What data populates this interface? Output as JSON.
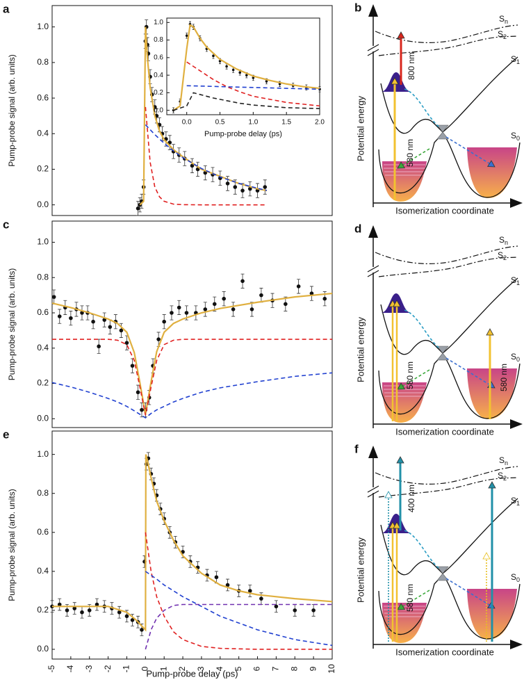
{
  "chart_data": [
    {
      "type": "scatter",
      "panel": "a",
      "ylabel": "Pump-probe signal (arb. units)",
      "xlim": [
        -5,
        10
      ],
      "ylim": [
        -0.06,
        1.12
      ],
      "yticks": [
        {
          "value": 0,
          "label": "0.0"
        },
        0.2,
        0.4,
        0.6,
        0.8,
        {
          "value": 1,
          "label": "1.0"
        }
      ],
      "points": {
        "x": [
          -0.4,
          -0.3,
          -0.2,
          -0.1,
          0,
          0.05,
          0.1,
          0.15,
          0.25,
          0.35,
          0.5,
          0.6,
          0.75,
          0.9,
          1.1,
          1.3,
          1.5,
          1.8,
          2.1,
          2.5,
          2.8,
          3.2,
          3.6,
          4.0,
          4.4,
          4.8,
          5.2,
          5.6,
          6.0,
          6.4
        ],
        "y": [
          -0.02,
          0,
          0.02,
          0.1,
          0.92,
          1.0,
          0.9,
          0.85,
          0.72,
          0.62,
          0.55,
          0.5,
          0.45,
          0.4,
          0.37,
          0.35,
          0.3,
          0.28,
          0.26,
          0.22,
          0.2,
          0.18,
          0.17,
          0.15,
          0.12,
          0.1,
          0.08,
          0.09,
          0.08,
          0.1
        ],
        "err": 0.04
      },
      "curves": [
        {
          "color": "#e0b040",
          "dash": false,
          "x": [
            -0.3,
            -0.1,
            0,
            0.1,
            0.25,
            0.5,
            0.75,
            1,
            1.5,
            2,
            3,
            4,
            5,
            6,
            6.5
          ],
          "values": [
            0,
            0.02,
            1.0,
            0.83,
            0.66,
            0.5,
            0.415,
            0.366,
            0.31,
            0.27,
            0.2,
            0.16,
            0.12,
            0.09,
            0.08
          ]
        },
        {
          "color": "#e02020",
          "dash": true,
          "x": [
            0,
            0.25,
            0.5,
            0.75,
            1,
            1.5,
            2,
            3,
            4,
            5,
            6,
            6.5
          ],
          "values": [
            0.55,
            0.24,
            0.1,
            0.045,
            0.02,
            0.004,
            0.001,
            0,
            0,
            0,
            0,
            0
          ]
        },
        {
          "color": "#2040d0",
          "dash": true,
          "x": [
            0,
            0.5,
            1,
            1.5,
            2,
            3,
            4,
            5,
            6,
            6.5
          ],
          "values": [
            0.45,
            0.395,
            0.346,
            0.304,
            0.266,
            0.204,
            0.157,
            0.121,
            0.093,
            0.081
          ]
        }
      ]
    },
    {
      "type": "scatter",
      "xlabel": "Pump-probe delay (ps)",
      "xlim": [
        -0.3,
        2.0
      ],
      "ylim": [
        -0.05,
        1.05
      ],
      "xticks": [
        {
          "value": 0,
          "label": "0.0"
        },
        0.5,
        {
          "value": 1,
          "label": "1.0"
        },
        1.5,
        {
          "value": 2,
          "label": "2.0"
        }
      ],
      "yticks": [
        {
          "value": 0,
          "label": "0.0"
        },
        0.2,
        0.4,
        0.6,
        0.8,
        {
          "value": 1,
          "label": "1.0"
        }
      ],
      "points": {
        "x": [
          -0.2,
          -0.1,
          0,
          0.05,
          0.1,
          0.2,
          0.3,
          0.4,
          0.5,
          0.6,
          0.7,
          0.8,
          0.9,
          1.0,
          1.2,
          1.4,
          1.6,
          1.8,
          2.0
        ],
        "y": [
          0.0,
          0.1,
          0.85,
          0.98,
          0.95,
          0.82,
          0.7,
          0.62,
          0.56,
          0.5,
          0.46,
          0.43,
          0.4,
          0.37,
          0.33,
          0.3,
          0.28,
          0.26,
          0.24
        ],
        "err": 0.03
      },
      "curves": [
        {
          "color": "#e0b040",
          "dash": false,
          "x": [
            -0.2,
            -0.1,
            0,
            0.05,
            0.1,
            0.2,
            0.3,
            0.5,
            0.75,
            1,
            1.25,
            1.5,
            1.75,
            2
          ],
          "values": [
            0,
            0.05,
            0.7,
            0.97,
            0.95,
            0.82,
            0.72,
            0.58,
            0.47,
            0.39,
            0.34,
            0.3,
            0.27,
            0.25
          ]
        },
        {
          "color": "#e02020",
          "dash": true,
          "x": [
            0,
            0.1,
            0.2,
            0.4,
            0.6,
            0.8,
            1,
            1.5,
            2
          ],
          "values": [
            0.55,
            0.5,
            0.45,
            0.35,
            0.27,
            0.21,
            0.16,
            0.09,
            0.05
          ]
        },
        {
          "color": "#2040d0",
          "dash": true,
          "x": [
            0,
            0.5,
            1,
            1.5,
            2
          ],
          "values": [
            0.28,
            0.27,
            0.26,
            0.25,
            0.24
          ]
        },
        {
          "color": "#222222",
          "dash": true,
          "x": [
            -0.2,
            0,
            0.1,
            0.2,
            0.4,
            0.6,
            0.8,
            1,
            1.5,
            2
          ],
          "values": [
            0,
            0.05,
            0.2,
            0.18,
            0.14,
            0.11,
            0.08,
            0.06,
            0.03,
            0.02
          ]
        }
      ]
    },
    {
      "type": "scatter",
      "panel": "c",
      "ylabel": "Pump-probe signal (arb. units)",
      "xlim": [
        -5,
        10
      ],
      "ylim": [
        -0.05,
        1.12
      ],
      "yticks": [
        {
          "value": 0,
          "label": "0.0"
        },
        0.2,
        0.4,
        0.6,
        0.8,
        {
          "value": 1,
          "label": "1.0"
        }
      ],
      "points": {
        "x": [
          -4.9,
          -4.6,
          -4.3,
          -4.0,
          -3.7,
          -3.4,
          -3.1,
          -2.8,
          -2.5,
          -2.2,
          -1.9,
          -1.6,
          -1.3,
          -1.0,
          -0.7,
          -0.4,
          -0.2,
          0,
          0.2,
          0.4,
          0.7,
          1.0,
          1.4,
          1.8,
          2.2,
          2.7,
          3.2,
          3.7,
          4.2,
          4.7,
          5.2,
          5.7,
          6.2,
          6.8,
          7.5,
          8.2,
          8.9,
          9.6
        ],
        "y": [
          0.69,
          0.58,
          0.63,
          0.57,
          0.62,
          0.6,
          0.6,
          0.55,
          0.41,
          0.56,
          0.52,
          0.55,
          0.5,
          0.43,
          0.3,
          0.15,
          0.05,
          0.05,
          0.12,
          0.3,
          0.45,
          0.55,
          0.6,
          0.63,
          0.6,
          0.6,
          0.62,
          0.65,
          0.68,
          0.62,
          0.78,
          0.62,
          0.7,
          0.67,
          0.65,
          0.75,
          0.71,
          0.68
        ],
        "err": 0.04
      },
      "curves": [
        {
          "color": "#e0b040",
          "dash": false,
          "x": [
            -5,
            -4,
            -3,
            -2,
            -1.5,
            -1,
            -0.6,
            -0.3,
            0,
            0.3,
            0.6,
            1,
            1.5,
            2,
            3,
            4,
            6,
            8,
            10
          ],
          "values": [
            0.655,
            0.63,
            0.6,
            0.565,
            0.54,
            0.49,
            0.375,
            0.205,
            0.025,
            0.21,
            0.38,
            0.49,
            0.54,
            0.565,
            0.6,
            0.625,
            0.66,
            0.69,
            0.71
          ]
        },
        {
          "color": "#e02020",
          "dash": true,
          "x": [
            -5,
            -4,
            -3,
            -2,
            -1.5,
            -1,
            -0.6,
            -0.3,
            0,
            0.3,
            0.6,
            1,
            1.5,
            2,
            3,
            4,
            6,
            8,
            10
          ],
          "values": [
            0.45,
            0.45,
            0.45,
            0.45,
            0.445,
            0.42,
            0.33,
            0.18,
            0.02,
            0.18,
            0.33,
            0.42,
            0.445,
            0.45,
            0.45,
            0.45,
            0.45,
            0.45,
            0.45
          ]
        },
        {
          "color": "#2040d0",
          "dash": true,
          "x": [
            -5,
            -4,
            -3,
            -2,
            -1.5,
            -1,
            -0.6,
            -0.3,
            0,
            0.3,
            0.6,
            1,
            1.5,
            2,
            3,
            4,
            6,
            8,
            10
          ],
          "values": [
            0.205,
            0.18,
            0.15,
            0.115,
            0.095,
            0.07,
            0.045,
            0.025,
            0.005,
            0.03,
            0.05,
            0.07,
            0.095,
            0.115,
            0.15,
            0.175,
            0.21,
            0.24,
            0.26
          ]
        }
      ]
    },
    {
      "type": "scatter",
      "panel": "e",
      "ylabel": "Pump-probe signal (arb. units)",
      "xlabel": "Pump-probe delay (ps)",
      "xlim": [
        -5,
        10
      ],
      "ylim": [
        -0.05,
        1.12
      ],
      "xticks": [
        -5,
        -4,
        -3,
        -2,
        -1,
        0,
        1,
        2,
        3,
        4,
        5,
        6,
        7,
        8,
        9,
        10
      ],
      "yticks": [
        {
          "value": 0,
          "label": "0.0"
        },
        0.2,
        0.4,
        0.6,
        0.8,
        {
          "value": 1,
          "label": "1.0"
        }
      ],
      "points": {
        "x": [
          -5,
          -4.6,
          -4.2,
          -3.8,
          -3.4,
          -3.0,
          -2.6,
          -2.2,
          -1.8,
          -1.4,
          -1.0,
          -0.7,
          -0.4,
          -0.2,
          -0.05,
          0.05,
          0.15,
          0.3,
          0.45,
          0.6,
          0.8,
          1.0,
          1.3,
          1.6,
          2.0,
          2.4,
          2.8,
          3.3,
          3.8,
          4.4,
          5.0,
          5.6,
          6.2,
          7.0,
          8.0,
          9.0
        ],
        "y": [
          0.22,
          0.23,
          0.2,
          0.21,
          0.19,
          0.2,
          0.23,
          0.22,
          0.21,
          0.19,
          0.17,
          0.15,
          0.14,
          0.1,
          0.45,
          0.95,
          0.98,
          0.9,
          0.85,
          0.79,
          0.72,
          0.67,
          0.6,
          0.55,
          0.5,
          0.45,
          0.42,
          0.38,
          0.37,
          0.33,
          0.3,
          0.3,
          0.26,
          0.22,
          0.2,
          0.2
        ],
        "err": 0.03
      },
      "curves": [
        {
          "color": "#e0b040",
          "dash": false,
          "x": [
            -5,
            -3,
            -2,
            -1,
            -0.5,
            -0.2,
            0,
            0.02,
            0.1,
            0.3,
            0.6,
            1,
            1.5,
            2,
            3,
            4,
            5,
            6,
            8,
            10
          ],
          "values": [
            0.22,
            0.22,
            0.22,
            0.19,
            0.15,
            0.12,
            0.1,
            1.0,
            0.97,
            0.88,
            0.76,
            0.66,
            0.56,
            0.48,
            0.39,
            0.33,
            0.3,
            0.28,
            0.26,
            0.245
          ]
        },
        {
          "color": "#e02020",
          "dash": true,
          "x": [
            0,
            0.3,
            0.6,
            1,
            1.5,
            2,
            3,
            4,
            6,
            8,
            10
          ],
          "values": [
            0.6,
            0.4,
            0.27,
            0.17,
            0.09,
            0.05,
            0.015,
            0.005,
            0,
            0,
            0
          ]
        },
        {
          "color": "#2040d0",
          "dash": true,
          "x": [
            0,
            0.3,
            0.6,
            1,
            1.5,
            2,
            3,
            4,
            6,
            8,
            10
          ],
          "values": [
            0.4,
            0.38,
            0.36,
            0.33,
            0.3,
            0.27,
            0.22,
            0.17,
            0.1,
            0.05,
            0.02
          ]
        },
        {
          "color": "#7030b0",
          "dash": true,
          "x": [
            0,
            0.3,
            0.6,
            1,
            1.5,
            2,
            4,
            10
          ],
          "values": [
            0,
            0.1,
            0.16,
            0.2,
            0.225,
            0.23,
            0.23,
            0.23
          ]
        }
      ]
    }
  ],
  "diagrams": [
    {
      "panel": "b",
      "states": [
        {
          "main": "S",
          "sub": "n"
        },
        {
          "main": "S",
          "sub": "2"
        },
        {
          "main": "S",
          "sub": "1"
        },
        {
          "main": "S",
          "sub": "0"
        }
      ],
      "y_label": "Potential energy",
      "x_label": "Isomerization coordinate",
      "wavelengths": [
        "800 nm",
        "580 nm"
      ]
    },
    {
      "panel": "d",
      "states": [
        {
          "main": "S",
          "sub": "n"
        },
        {
          "main": "S",
          "sub": "2"
        },
        {
          "main": "S",
          "sub": "1"
        },
        {
          "main": "S",
          "sub": "0"
        }
      ],
      "y_label": "Potential energy",
      "x_label": "Isomerization coordinate",
      "wavelengths": [
        "580 nm",
        "580 nm"
      ]
    },
    {
      "panel": "f",
      "states": [
        {
          "main": "S",
          "sub": "n"
        },
        {
          "main": "S",
          "sub": "2"
        },
        {
          "main": "S",
          "sub": "1"
        },
        {
          "main": "S",
          "sub": "0"
        }
      ],
      "y_label": "Potential energy",
      "x_label": "Isomerization coordinate",
      "wavelengths": [
        "400 nm",
        "580 nm"
      ]
    }
  ]
}
